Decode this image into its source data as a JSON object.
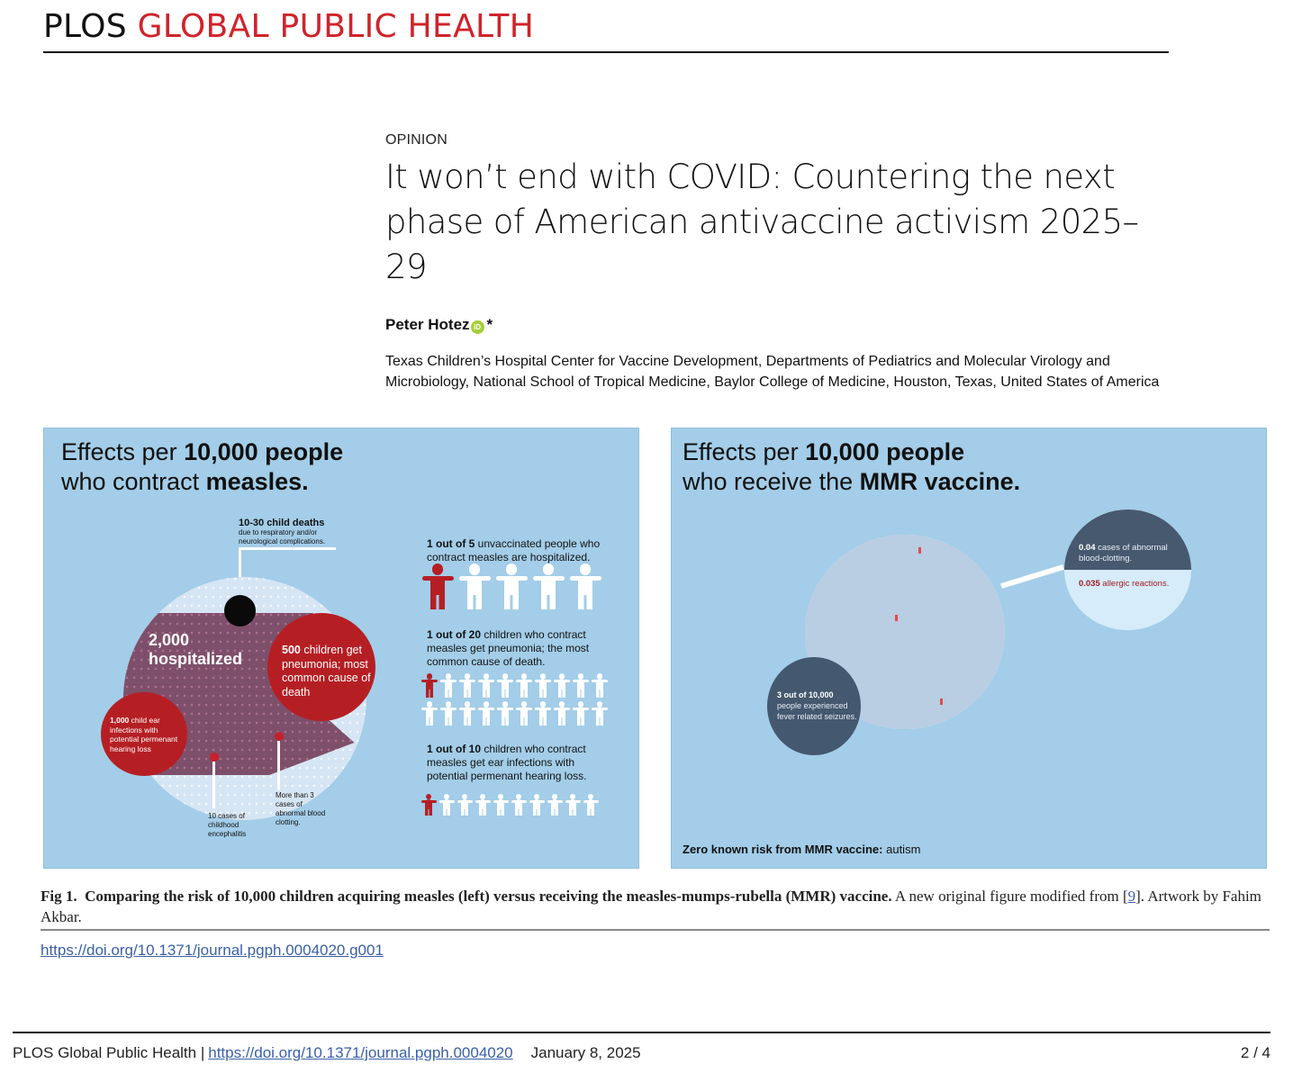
{
  "header": {
    "publisher": "PLOS",
    "journal": "GLOBAL PUBLIC HEALTH",
    "brand_color": "#d0232b"
  },
  "article": {
    "type": "OPINION",
    "title": "It won’t end with COVID: Countering the next phase of American antivaccine activism 2025–29",
    "author": "Peter Hotez",
    "author_marker": "*",
    "orcid_icon": "orcid-id-icon",
    "orcid_label": "iD",
    "affiliation": "Texas Children’s Hospital Center for Vaccine Development, Departments of Pediatrics and Molecular Virology and Microbiology, National School of Tropical Medicine, Baylor College of Medicine, Houston, Texas, United States of America"
  },
  "figure": {
    "left_panel": {
      "title_pre": "Effects per ",
      "title_bold1": "10,000 people",
      "title_mid": "who contract ",
      "title_bold2": "measles.",
      "deaths_bold": "10-30 child deaths",
      "deaths_sub": "due to respiratory and/or neurological complications.",
      "hospitalized_num": "2,000",
      "hospitalized_label": "hospitalized",
      "pneumonia_bold": "500",
      "pneumonia_text": " children get pneumonia; most common cause of death",
      "ear_bold": "1,000",
      "ear_text": " child ear infections with potential permenant hearing loss",
      "encephalitis": "10 cases of childhood encephalitis",
      "clotting": "More than 3 cases of abnormal blood clotting.",
      "stats": [
        {
          "bold": "1 out of 5",
          "text": " unvaccinated people who contract measles are hospitalized.",
          "affected": 1,
          "total": 5
        },
        {
          "bold": "1 out of 20",
          "text": " children who contract measles get pneumonia; the most common cause of death.",
          "affected": 1,
          "total": 20
        },
        {
          "bold": "1 out of 10",
          "text": " children who contract measles get ear infections with potential permenant hearing loss.",
          "affected": 1,
          "total": 10
        }
      ],
      "colors": {
        "red": "#b51f24",
        "blue": "#5b96d2",
        "panel": "#a3cde8"
      }
    },
    "right_panel": {
      "title_pre": "Effects per ",
      "title_bold1": "10,000 people",
      "title_mid": "who receive the ",
      "title_bold2": "MMR vaccine.",
      "clotting_bold": "0.04",
      "clotting_text": " cases of abnormal blood-clotting.",
      "allergic_bold": "0.035",
      "allergic_text": " allergic reactions.",
      "seizure_bold": "3 out of 10,000",
      "seizure_text": "people experienced fever related seizures.",
      "zero_risk_bold": "Zero known risk from MMR vaccine:",
      "zero_risk_text": " autism",
      "colors": {
        "navy": "#44586f",
        "light": "#d6ecfa"
      }
    },
    "caption_label": "Fig 1.",
    "caption_bold": "Comparing the risk of 10,000 children acquiring measles (left) versus receiving the measles-mumps-rubella (MMR) vaccine.",
    "caption_text_1": " A new original figure modified from [",
    "caption_ref": "9",
    "caption_text_2": "]. Artwork by Fahim Akbar.",
    "doi": "https://doi.org/10.1371/journal.pgph.0004020.g001"
  },
  "footer": {
    "journal": "PLOS Global Public Health |",
    "doi": "https://doi.org/10.1371/journal.pgph.0004020",
    "date": "January 8, 2025",
    "page": "2 / 4"
  }
}
